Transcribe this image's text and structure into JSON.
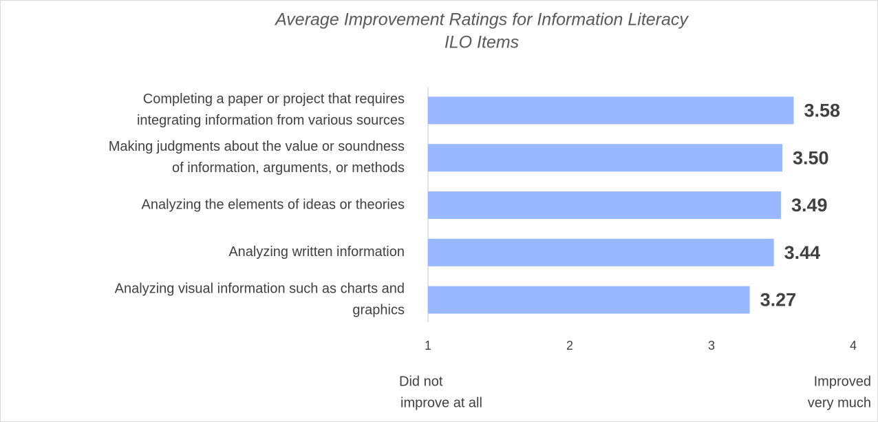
{
  "chart_data": {
    "type": "bar",
    "orientation": "horizontal",
    "title": [
      "Average Improvement Ratings for Information Literacy",
      "ILO Items"
    ],
    "categories": [
      [
        "Completing a paper or project that requires",
        "integrating information from various sources"
      ],
      [
        "Making judgments about the value or soundness",
        "of information, arguments, or methods"
      ],
      [
        "Analyzing the elements of ideas or theories"
      ],
      [
        "Analyzing written information"
      ],
      [
        "Analyzing visual information such as charts and",
        "graphics"
      ]
    ],
    "values": [
      3.58,
      3.5,
      3.49,
      3.44,
      3.27
    ],
    "value_labels": [
      "3.58",
      "3.50",
      "3.49",
      "3.44",
      "3.27"
    ],
    "color": "#99b8ff",
    "xlim": [
      1,
      4
    ],
    "xticks": [
      1,
      2,
      3,
      4
    ],
    "annotations": [
      [
        "Did not",
        "improve at all"
      ],
      [
        "Improved",
        "very much"
      ]
    ]
  }
}
